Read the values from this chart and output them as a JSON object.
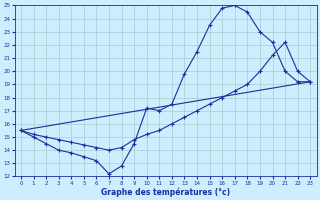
{
  "xlabel": "Graphe des températures (°c)",
  "ylim": [
    12,
    25
  ],
  "xlim": [
    -0.5,
    23.5
  ],
  "yticks": [
    12,
    13,
    14,
    15,
    16,
    17,
    18,
    19,
    20,
    21,
    22,
    23,
    24,
    25
  ],
  "xticks": [
    0,
    1,
    2,
    3,
    4,
    5,
    6,
    7,
    8,
    9,
    10,
    11,
    12,
    13,
    14,
    15,
    16,
    17,
    18,
    19,
    20,
    21,
    22,
    23
  ],
  "bg_color": "#cceeff",
  "line_color": "#1a2f9e",
  "grid_color": "#aacccc",
  "line1_x": [
    0,
    1,
    2,
    3,
    4,
    5,
    6,
    7,
    8,
    9,
    10,
    11,
    12,
    13,
    14,
    15,
    16,
    17,
    18,
    19,
    20,
    21,
    22,
    23
  ],
  "line1_y": [
    15.5,
    15.0,
    14.5,
    14.0,
    13.8,
    13.5,
    13.2,
    12.2,
    12.8,
    14.5,
    17.2,
    17.0,
    17.5,
    19.8,
    21.5,
    23.5,
    24.8,
    25.0,
    24.5,
    23.0,
    22.2,
    20.0,
    19.2,
    19.2
  ],
  "line2_x": [
    0,
    1,
    2,
    3,
    4,
    5,
    6,
    7,
    8,
    9,
    10,
    11,
    12,
    13,
    14,
    15,
    16,
    17,
    18,
    19,
    20,
    21,
    22,
    23
  ],
  "line2_y": [
    15.5,
    15.2,
    15.0,
    14.8,
    14.6,
    14.4,
    14.2,
    14.0,
    14.2,
    14.8,
    15.2,
    15.5,
    16.0,
    16.5,
    17.0,
    17.5,
    18.0,
    18.5,
    19.0,
    20.0,
    21.2,
    22.2,
    20.0,
    19.2
  ],
  "line3_x": [
    0,
    23
  ],
  "line3_y": [
    15.5,
    19.2
  ]
}
